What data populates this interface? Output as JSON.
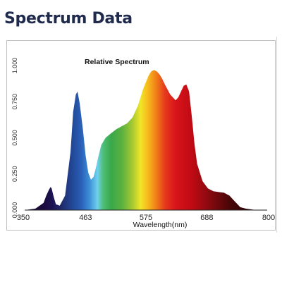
{
  "heading": "Spectrum Data",
  "chart_data": {
    "type": "area",
    "title": "Relative Spectrum",
    "xlabel": "Wavelength(nm)",
    "ylabel": "",
    "xlim": [
      350,
      800
    ],
    "ylim": [
      0,
      1.0
    ],
    "x_ticks": [
      "350",
      "463",
      "575",
      "688",
      "800"
    ],
    "x_tick_values": [
      350,
      463,
      575,
      688,
      800
    ],
    "y_ticks": [
      "0.000",
      "0.250",
      "0.500",
      "0.750",
      "1.000"
    ],
    "y_tick_values": [
      0,
      0.25,
      0.5,
      0.75,
      1.0
    ],
    "grid": false,
    "legend": "none",
    "fill": "visible-spectrum gradient",
    "series": [
      {
        "x": [
          350,
          370,
          385,
          390,
          395,
          398,
          400,
          404,
          408,
          415,
          425,
          435,
          440,
          445,
          448,
          452,
          458,
          463,
          468,
          473,
          478,
          482,
          486,
          492,
          500,
          510,
          520,
          530,
          540,
          550,
          560,
          570,
          580,
          585,
          590,
          595,
          600,
          605,
          610,
          620,
          630,
          635,
          640,
          645,
          650,
          655,
          660,
          665,
          670,
          680,
          690,
          700,
          710,
          720,
          730,
          740,
          750,
          760,
          780,
          800
        ],
        "y": [
          0,
          0.01,
          0.05,
          0.1,
          0.14,
          0.16,
          0.15,
          0.09,
          0.04,
          0.03,
          0.1,
          0.4,
          0.68,
          0.8,
          0.82,
          0.74,
          0.56,
          0.38,
          0.26,
          0.21,
          0.23,
          0.29,
          0.36,
          0.45,
          0.5,
          0.53,
          0.56,
          0.58,
          0.6,
          0.64,
          0.72,
          0.84,
          0.93,
          0.96,
          0.97,
          0.96,
          0.94,
          0.91,
          0.87,
          0.8,
          0.76,
          0.78,
          0.82,
          0.86,
          0.87,
          0.82,
          0.65,
          0.46,
          0.32,
          0.2,
          0.15,
          0.13,
          0.125,
          0.12,
          0.1,
          0.06,
          0.02,
          0.01,
          0.0,
          0.0
        ]
      }
    ],
    "color_stops": [
      {
        "nm": 380,
        "color": "#1a0a3a"
      },
      {
        "nm": 400,
        "color": "#1c1250"
      },
      {
        "nm": 420,
        "color": "#1f2e6e"
      },
      {
        "nm": 440,
        "color": "#234a9a"
      },
      {
        "nm": 455,
        "color": "#2a5fb8"
      },
      {
        "nm": 470,
        "color": "#3c8fd6"
      },
      {
        "nm": 485,
        "color": "#6fd0ee"
      },
      {
        "nm": 495,
        "color": "#4fbf7a"
      },
      {
        "nm": 510,
        "color": "#3aa84a"
      },
      {
        "nm": 530,
        "color": "#58b040"
      },
      {
        "nm": 550,
        "color": "#a6c832"
      },
      {
        "nm": 565,
        "color": "#f0e628"
      },
      {
        "nm": 580,
        "color": "#f6b51c"
      },
      {
        "nm": 595,
        "color": "#f07a18"
      },
      {
        "nm": 610,
        "color": "#e63a1c"
      },
      {
        "nm": 630,
        "color": "#d8141a"
      },
      {
        "nm": 660,
        "color": "#c00a14"
      },
      {
        "nm": 690,
        "color": "#8c0a10"
      },
      {
        "nm": 730,
        "color": "#4a0608"
      },
      {
        "nm": 780,
        "color": "#220203"
      }
    ]
  }
}
